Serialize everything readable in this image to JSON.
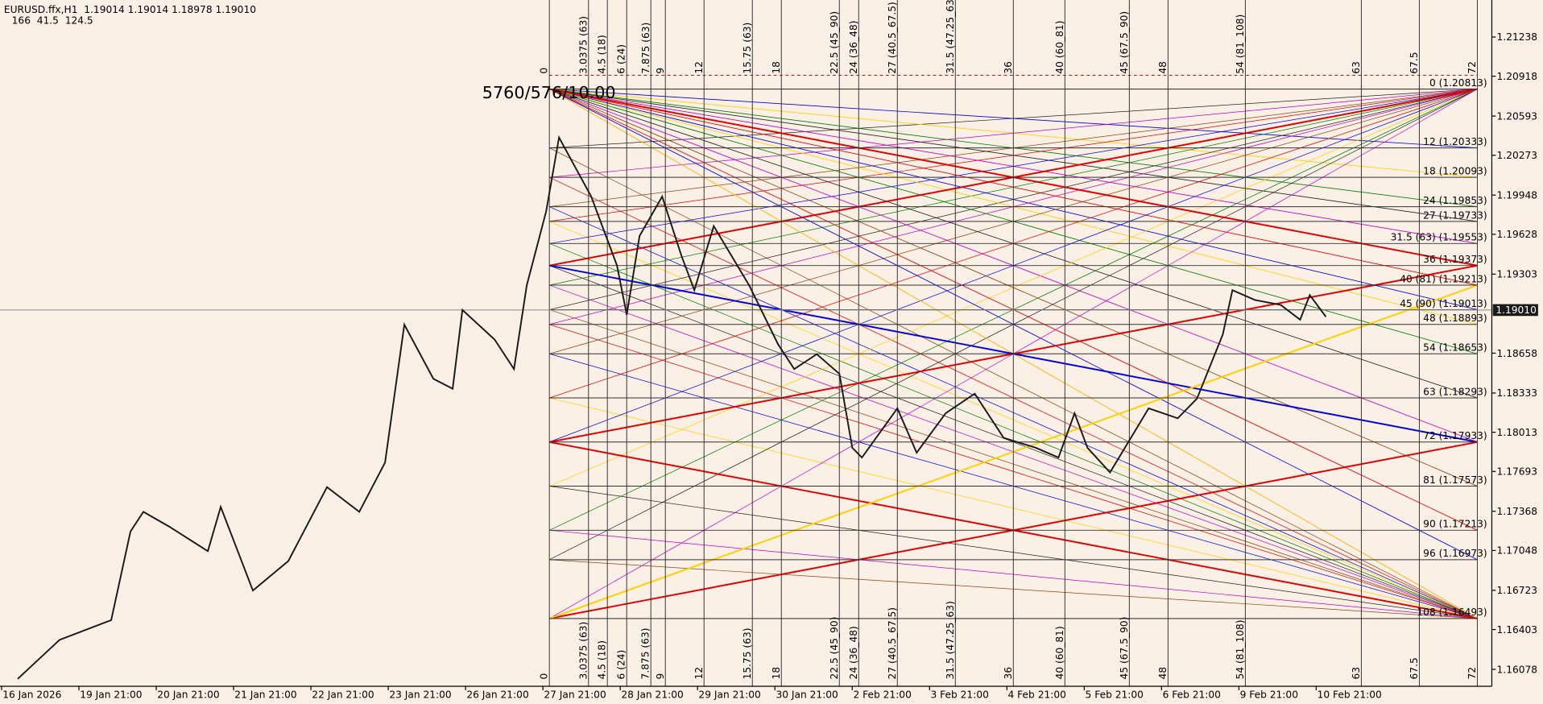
{
  "chart_data": {
    "type": "line",
    "title": "EURUSD.ffx,H1  1.19014 1.19014 1.18978 1.19010",
    "subtitle": "166  41.5  124.5",
    "annotation": "5760/576/10.00",
    "color": "#1a1a1a",
    "x": [
      5,
      18,
      34,
      40,
      44,
      52,
      64,
      68,
      78,
      89,
      101,
      111,
      119,
      125,
      134,
      140,
      143,
      153,
      159,
      163,
      169,
      173,
      183,
      191,
      194,
      198,
      205,
      211,
      215,
      221,
      232,
      241,
      246,
      253,
      260,
      264,
      267,
      278,
      284,
      293,
      302,
      311,
      321,
      328,
      333,
      337,
      344,
      356,
      365,
      371,
      379,
      382,
      389,
      397,
      403,
      406,
      411
    ],
    "values": [
      1.16,
      1.16319,
      1.1648,
      1.17203,
      1.17364,
      1.17243,
      1.17042,
      1.17404,
      1.16721,
      1.16962,
      1.17565,
      1.17364,
      1.17766,
      1.18891,
      1.18449,
      1.18368,
      1.19011,
      1.1877,
      1.18529,
      1.19212,
      1.19815,
      1.20418,
      1.19936,
      1.19373,
      1.18971,
      1.19614,
      1.19936,
      1.19453,
      1.19172,
      1.19695,
      1.19212,
      1.1873,
      1.18529,
      1.1865,
      1.18489,
      1.17886,
      1.17806,
      1.18208,
      1.17846,
      1.18168,
      1.18328,
      1.17967,
      1.17886,
      1.17806,
      1.18168,
      1.17886,
      1.17685,
      1.18208,
      1.18127,
      1.18288,
      1.18811,
      1.19172,
      1.19092,
      1.19052,
      1.18931,
      1.19132,
      1.18955
    ],
    "xlim": [
      -0.5,
      462.5
    ],
    "xticks": [
      {
        "value": 0,
        "label": "16 Jan 2026"
      },
      {
        "value": 24,
        "label": "19 Jan 21:00"
      },
      {
        "value": 48,
        "label": "20 Jan 21:00"
      },
      {
        "value": 72,
        "label": "21 Jan 21:00"
      },
      {
        "value": 96,
        "label": "22 Jan 21:00"
      },
      {
        "value": 120,
        "label": "23 Jan 21:00"
      },
      {
        "value": 144,
        "label": "26 Jan 21:00"
      },
      {
        "value": 168,
        "label": "27 Jan 21:00"
      },
      {
        "value": 192,
        "label": "28 Jan 21:00"
      },
      {
        "value": 216,
        "label": "29 Jan 21:00"
      },
      {
        "value": 240,
        "label": "30 Jan 21:00"
      },
      {
        "value": 264,
        "label": "2 Feb 21:00"
      },
      {
        "value": 288,
        "label": "3 Feb 21:00"
      },
      {
        "value": 312,
        "label": "4 Feb 21:00"
      },
      {
        "value": 336,
        "label": "5 Feb 21:00"
      },
      {
        "value": 360,
        "label": "6 Feb 21:00"
      },
      {
        "value": 384,
        "label": "9 Feb 21:00"
      },
      {
        "value": 408,
        "label": "10 Feb 21:00"
      }
    ],
    "ylim": [
      1.1594,
      1.2154
    ],
    "yticks": [
      1.21238,
      1.20918,
      1.20593,
      1.20273,
      1.19948,
      1.19628,
      1.19303,
      1.18658,
      1.18333,
      1.18013,
      1.17693,
      1.17368,
      1.17048,
      1.16723,
      1.16403,
      1.16078
    ],
    "last_price": {
      "value": 1.1901,
      "label": "1.19010"
    },
    "price_levels": [
      {
        "value": 1.20813,
        "label": "0 (1.20813)"
      },
      {
        "value": 1.20333,
        "label": "12 (1.20333)"
      },
      {
        "value": 1.20093,
        "label": "18 (1.20093)"
      },
      {
        "value": 1.19853,
        "label": "24 (1.19853)"
      },
      {
        "value": 1.19733,
        "label": "27 (1.19733)"
      },
      {
        "value": 1.19553,
        "label": "31.5 (63) (1.19553)"
      },
      {
        "value": 1.19373,
        "label": "36 (1.19373)"
      },
      {
        "value": 1.19213,
        "label": "40 (81) (1.19213)"
      },
      {
        "value": 1.19013,
        "label": "45 (90) (1.19013)"
      },
      {
        "value": 1.18893,
        "label": "48 (1.18893)"
      },
      {
        "value": 1.18653,
        "label": "54 (1.18653)"
      },
      {
        "value": 1.18293,
        "label": "63 (1.18293)"
      },
      {
        "value": 1.17933,
        "label": "72 (1.17933)"
      },
      {
        "value": 1.17573,
        "label": "81 (1.17573)"
      },
      {
        "value": 1.17213,
        "label": "90 (1.17213)"
      },
      {
        "value": 1.16973,
        "label": "96 (1.16973)"
      },
      {
        "value": 1.16493,
        "label": "108 (1.16493)"
      }
    ],
    "time_levels": [
      {
        "value": 170,
        "label": "0"
      },
      {
        "value": 182.15,
        "label": "3.0375 (63)"
      },
      {
        "value": 188,
        "label": "4.5 (18)"
      },
      {
        "value": 194,
        "label": "6 (24)"
      },
      {
        "value": 201.5,
        "label": "7.875 (63)"
      },
      {
        "value": 206,
        "label": "9"
      },
      {
        "value": 218,
        "label": "12"
      },
      {
        "value": 233,
        "label": "15.75 (63)"
      },
      {
        "value": 242,
        "label": "18"
      },
      {
        "value": 260,
        "label": "22.5 (45_90)"
      },
      {
        "value": 266,
        "label": "24 (36_48)"
      },
      {
        "value": 278,
        "label": "27 (40.5_67.5)"
      },
      {
        "value": 296,
        "label": "31.5 (47.25_63)"
      },
      {
        "value": 314,
        "label": "36"
      },
      {
        "value": 330,
        "label": "40 (60_81)"
      },
      {
        "value": 350,
        "label": "45 (67.5_90)"
      },
      {
        "value": 362,
        "label": "48"
      },
      {
        "value": 386,
        "label": "54 (81_108)"
      },
      {
        "value": 422,
        "label": "63"
      },
      {
        "value": 440,
        "label": "67.5"
      },
      {
        "value": 458,
        "label": "72"
      }
    ],
    "grid": false
  }
}
